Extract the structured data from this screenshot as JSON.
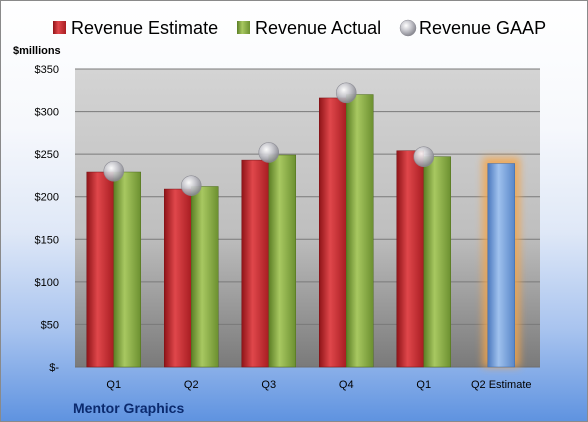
{
  "chart_data": {
    "type": "bar",
    "company": "Mentor Graphics",
    "unit_label": "$millions",
    "categories": [
      "Q1",
      "Q2",
      "Q3",
      "Q4",
      "Q1",
      "Q2 Estimate"
    ],
    "series": [
      {
        "name": "Revenue Estimate",
        "type": "bar",
        "color": "#c0282d",
        "values": [
          229,
          209,
          243,
          316,
          254,
          239
        ]
      },
      {
        "name": "Revenue Actual",
        "type": "bar",
        "color": "#7ea33c",
        "values": [
          229,
          212,
          249,
          320,
          247,
          null
        ]
      },
      {
        "name": "Revenue GAAP",
        "type": "marker",
        "color": "#b8b8c0",
        "values": [
          230,
          213,
          252,
          322,
          247,
          null
        ]
      }
    ],
    "highlight_category": "Q2 Estimate",
    "highlight_color": "#6f9ddb",
    "glow_color": "#f5a54a",
    "y_ticks": [
      "$-",
      "$50",
      "$100",
      "$150",
      "$200",
      "$250",
      "$300",
      "$350"
    ],
    "ylim": [
      0,
      350
    ],
    "y_step": 50,
    "grid": true,
    "legend_position": "top"
  }
}
